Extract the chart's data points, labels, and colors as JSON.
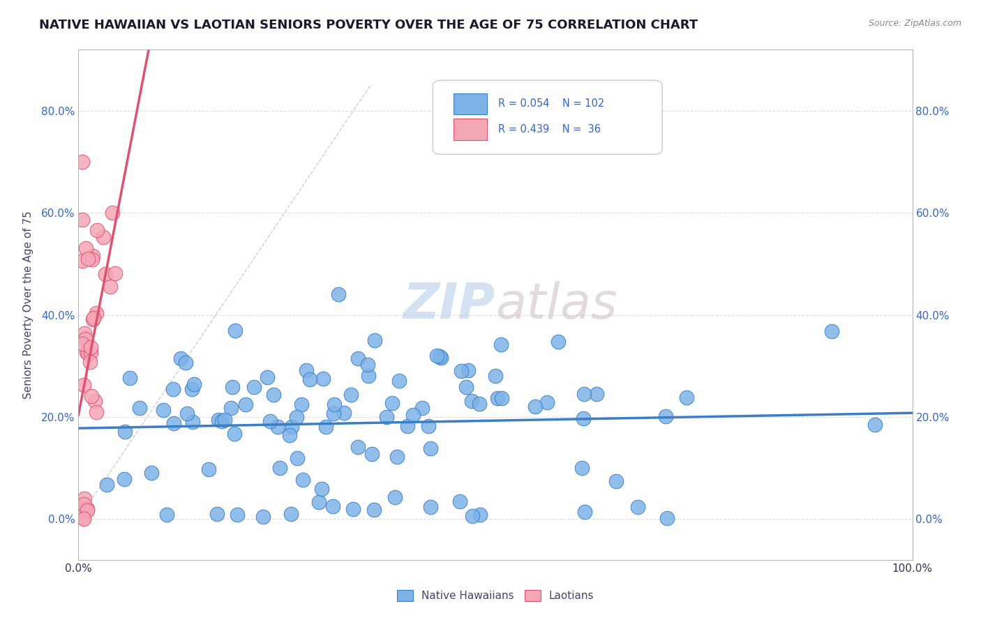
{
  "title": "NATIVE HAWAIIAN VS LAOTIAN SENIORS POVERTY OVER THE AGE OF 75 CORRELATION CHART",
  "source": "Source: ZipAtlas.com",
  "ylabel": "Seniors Poverty Over the Age of 75",
  "xlim": [
    0,
    1.0
  ],
  "ylim": [
    -0.08,
    0.92
  ],
  "x_tick_labels": [
    "0.0%",
    "100.0%"
  ],
  "y_tick_labels": [
    "0.0%",
    "20.0%",
    "40.0%",
    "60.0%",
    "80.0%"
  ],
  "y_tick_vals": [
    0.0,
    0.2,
    0.4,
    0.6,
    0.8
  ],
  "color_nh": "#7EB3E8",
  "color_la": "#F4A7B5",
  "line_nh": "#3A7EC6",
  "line_la": "#E05070",
  "bg_color": "#FFFFFF",
  "grid_color": "#DDDDDD",
  "title_color": "#1a1a2e",
  "r_color": "#3366CC"
}
